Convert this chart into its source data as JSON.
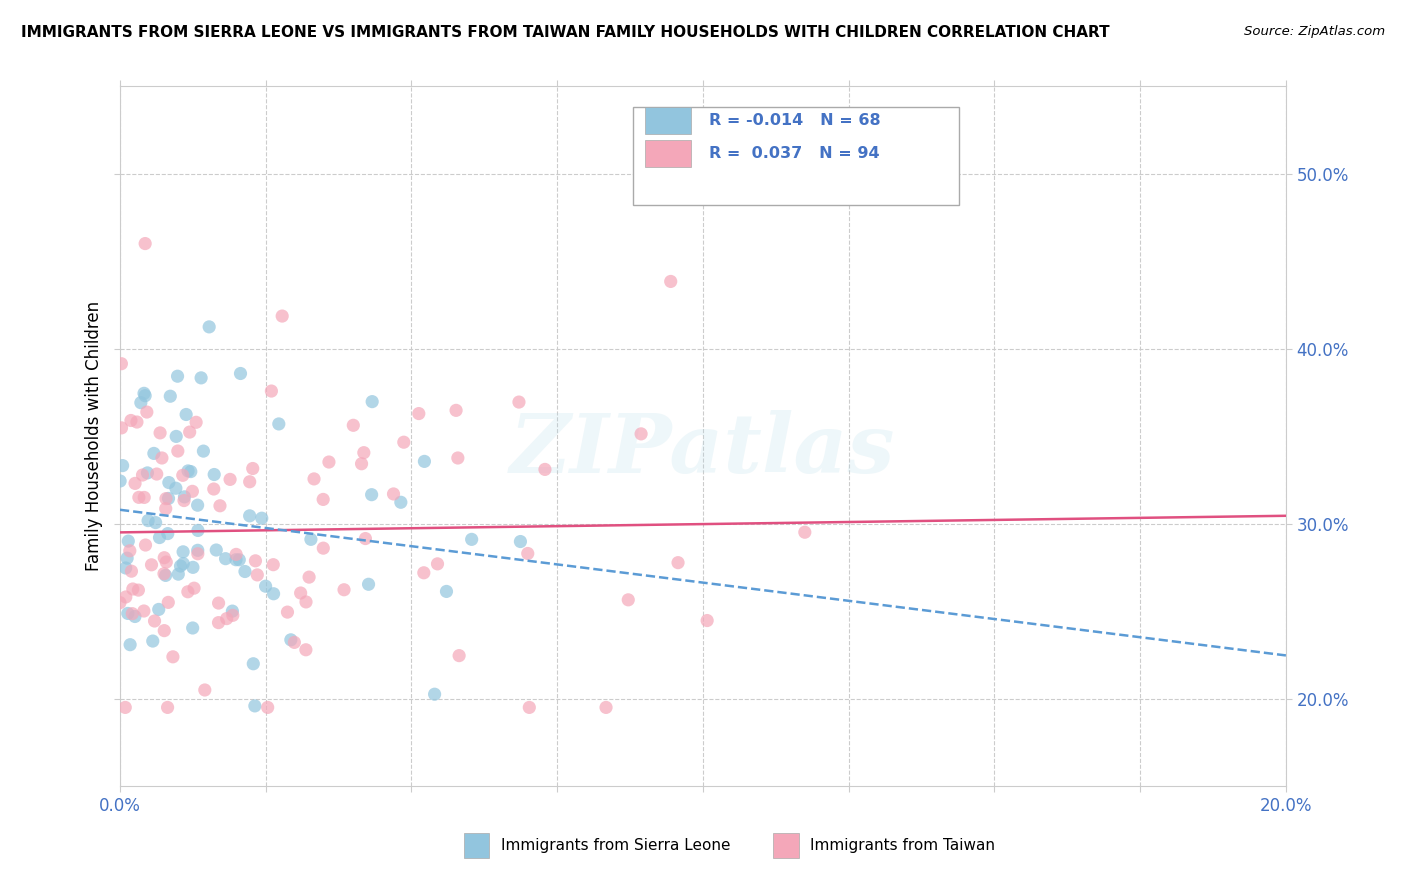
{
  "title": "IMMIGRANTS FROM SIERRA LEONE VS IMMIGRANTS FROM TAIWAN FAMILY HOUSEHOLDS WITH CHILDREN CORRELATION CHART",
  "source": "Source: ZipAtlas.com",
  "ylabel_label": "Family Households with Children",
  "legend_label1": "Immigrants from Sierra Leone",
  "legend_label2": "Immigrants from Taiwan",
  "R1": "-0.014",
  "N1": "68",
  "R2": "0.037",
  "N2": "94",
  "color_blue": "#92C5DE",
  "color_pink": "#F4A7B9",
  "color_blue_text": "#4472C4",
  "color_trendline_blue": "#5B9BD5",
  "color_trendline_pink": "#E05080",
  "background_color": "#FFFFFF",
  "watermark_text": "ZIPatlas",
  "xmin": 0.0,
  "xmax": 0.2,
  "ymin": 0.15,
  "ymax": 0.55,
  "n_blue": 68,
  "n_pink": 94,
  "R_blue": -0.014,
  "R_pink": 0.037,
  "yticks": [
    0.2,
    0.3,
    0.4,
    0.5
  ],
  "xticks_left_label": "0.0%",
  "xticks_right_label": "20.0%"
}
